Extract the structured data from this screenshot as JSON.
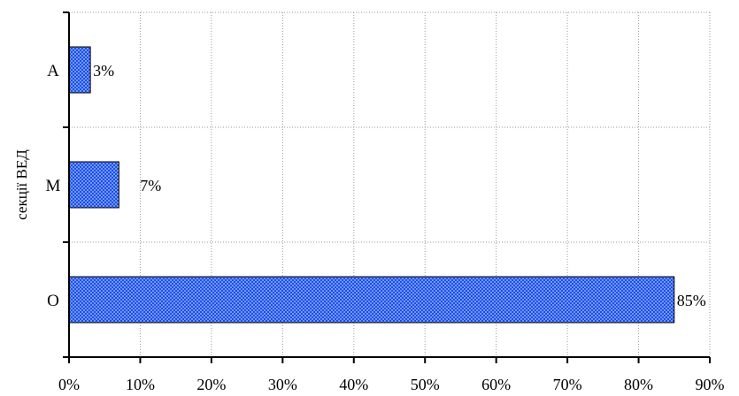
{
  "chart_data": {
    "type": "bar",
    "orientation": "horizontal",
    "categories": [
      "A",
      "M",
      "O"
    ],
    "values": [
      3,
      7,
      85
    ],
    "data_labels": [
      "3%",
      "7%",
      "85%"
    ],
    "xlabel": "",
    "ylabel": "секції ВЕД",
    "xlim": [
      0,
      90
    ],
    "x_ticks": [
      0,
      10,
      20,
      30,
      40,
      50,
      60,
      70,
      80,
      90
    ],
    "x_tick_labels": [
      "0%",
      "10%",
      "20%",
      "30%",
      "40%",
      "50%",
      "60%",
      "70%",
      "80%",
      "90%"
    ],
    "grid": true,
    "legend": "none",
    "bar_color": "#3366ff",
    "bar_pattern": "crosshatch"
  }
}
